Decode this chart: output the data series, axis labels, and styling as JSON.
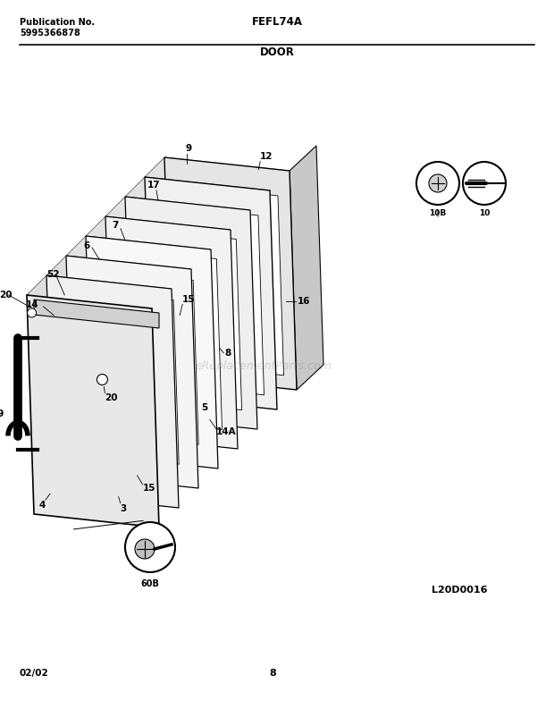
{
  "title_left_line1": "Publication No.",
  "title_left_line2": "5995366878",
  "title_center_top": "FEFL74A",
  "title_center_bottom": "DOOR",
  "footer_left": "02/02",
  "footer_center": "8",
  "watermark": "eReplacementParts.com",
  "diagram_id": "L20D0016",
  "bg_color": "#ffffff",
  "line_color": "#000000"
}
